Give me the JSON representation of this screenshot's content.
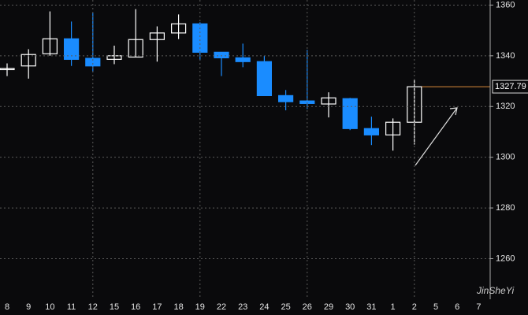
{
  "chart_data": {
    "type": "candlestick",
    "categories": [
      "8",
      "9",
      "10",
      "11",
      "12",
      "15",
      "16",
      "17",
      "18",
      "19",
      "22",
      "23",
      "24",
      "25",
      "26",
      "29",
      "30",
      "31",
      "1",
      "2",
      "5",
      "6",
      "7"
    ],
    "series": [
      {
        "name": "open",
        "values": [
          1335,
          1336,
          1340.8,
          1346.7,
          1339,
          1338.6,
          1339.5,
          1346.4,
          1349,
          1352.6,
          1341.4,
          1339.2,
          1337.7,
          1324.3,
          1322.2,
          1321,
          1323.1,
          1311.3,
          1308.8,
          1313.8,
          null,
          null,
          null
        ]
      },
      {
        "name": "high",
        "values": [
          1337,
          1342.6,
          1357.5,
          1353.5,
          1357,
          1344,
          1358.4,
          1351.6,
          1356.3,
          1353.2,
          1341.4,
          1344.8,
          1340,
          1326.5,
          1342.3,
          1325.6,
          1323.4,
          1316,
          1315.3,
          1330.5,
          null,
          null,
          null
        ]
      },
      {
        "name": "low",
        "values": [
          1332,
          1331,
          1340,
          1336,
          1333.6,
          1336.7,
          1339.5,
          1337.7,
          1346.6,
          1338.3,
          1332,
          1335.5,
          1324.3,
          1318.5,
          1319,
          1315.7,
          1310.7,
          1304.8,
          1302.6,
          1305,
          null,
          null,
          null
        ]
      },
      {
        "name": "close",
        "values": [
          1335,
          1340.5,
          1346.7,
          1338.6,
          1336,
          1340,
          1346.4,
          1349,
          1352.6,
          1341.4,
          1339.2,
          1337.7,
          1324.3,
          1321.9,
          1321.2,
          1323.4,
          1311.3,
          1308.8,
          1313.8,
          1327.8,
          null,
          null,
          null
        ]
      }
    ],
    "up_color": "#ffffff",
    "down_color": "#1a8cff",
    "last_price": 1327.79,
    "last_price_color": "#d98a3a",
    "ylim": [
      1244,
      1362
    ],
    "yticks": [
      1260,
      1280,
      1300,
      1320,
      1340,
      1360
    ],
    "grid": true,
    "watermark": "JinSheYi"
  }
}
